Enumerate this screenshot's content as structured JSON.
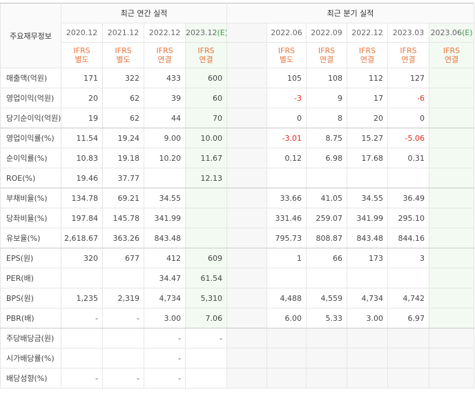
{
  "header": {
    "label": "주요재무정보",
    "annual_title": "최근 연간 실적",
    "quarterly_title": "최근 분기 실적"
  },
  "annual_periods": [
    {
      "period": "2020.12",
      "basis": "IFRS",
      "scope": "별도"
    },
    {
      "period": "2021.12",
      "basis": "IFRS",
      "scope": "별도"
    },
    {
      "period": "2022.12",
      "basis": "IFRS",
      "scope": "연결"
    },
    {
      "period": "2023.12",
      "estimate": "(E)",
      "basis": "IFRS",
      "scope": "연결"
    }
  ],
  "quarterly_periods": [
    {
      "period": "2022.06",
      "basis": "IFRS",
      "scope": "별도"
    },
    {
      "period": "2022.09",
      "basis": "IFRS",
      "scope": "연결"
    },
    {
      "period": "2022.12",
      "basis": "IFRS",
      "scope": "연결"
    },
    {
      "period": "2023.03",
      "basis": "IFRS",
      "scope": "연결"
    },
    {
      "period": "2023.06",
      "estimate": "(E)",
      "basis": "IFRS",
      "scope": "연결"
    }
  ],
  "rows": [
    {
      "label": "매출액(억원)",
      "annual": [
        "171",
        "322",
        "433",
        "600"
      ],
      "quarterly": [
        "105",
        "108",
        "112",
        "127",
        null
      ]
    },
    {
      "label": "영업이익(억원)",
      "annual": [
        "20",
        "62",
        "39",
        "60"
      ],
      "quarterly": [
        "-3",
        "9",
        "17",
        "-6",
        null
      ]
    },
    {
      "label": "당기순이익(억원)",
      "annual": [
        "19",
        "62",
        "44",
        "70"
      ],
      "quarterly": [
        "0",
        "8",
        "20",
        "0",
        null
      ]
    },
    {
      "label": "영업이익률(%)",
      "annual": [
        "11.54",
        "19.24",
        "9.00",
        "10.00"
      ],
      "quarterly": [
        "-3.01",
        "8.75",
        "15.27",
        "-5.06",
        null
      ]
    },
    {
      "label": "순이익률(%)",
      "annual": [
        "10.83",
        "19.18",
        "10.20",
        "11.67"
      ],
      "quarterly": [
        "0.12",
        "6.98",
        "17.68",
        "0.31",
        null
      ]
    },
    {
      "label": "ROE(%)",
      "annual": [
        "19.46",
        "37.77",
        null,
        "12.13"
      ],
      "quarterly": [
        null,
        null,
        null,
        null,
        null
      ]
    },
    {
      "label": "부채비율(%)",
      "annual": [
        "134.78",
        "69.21",
        "34.55",
        null
      ],
      "quarterly": [
        "33.66",
        "41.05",
        "34.55",
        "36.49",
        null
      ]
    },
    {
      "label": "당좌비율(%)",
      "annual": [
        "197.84",
        "145.78",
        "341.99",
        null
      ],
      "quarterly": [
        "331.46",
        "259.07",
        "341.99",
        "295.10",
        null
      ]
    },
    {
      "label": "유보율(%)",
      "annual": [
        "2,618.67",
        "363.26",
        "843.48",
        null
      ],
      "quarterly": [
        "795.73",
        "808.87",
        "843.48",
        "844.16",
        null
      ]
    },
    {
      "label": "EPS(원)",
      "annual": [
        "320",
        "677",
        "412",
        "609"
      ],
      "quarterly": [
        "1",
        "66",
        "173",
        "3",
        null
      ]
    },
    {
      "label": "PER(배)",
      "annual": [
        null,
        null,
        "34.47",
        "61.54"
      ],
      "quarterly": [
        null,
        null,
        null,
        null,
        null
      ]
    },
    {
      "label": "BPS(원)",
      "annual": [
        "1,235",
        "2,319",
        "4,734",
        "5,310"
      ],
      "quarterly": [
        "4,488",
        "4,559",
        "4,734",
        "4,742",
        null
      ]
    },
    {
      "label": "PBR(배)",
      "annual": [
        "-",
        "-",
        "3.00",
        "7.06"
      ],
      "quarterly": [
        "6.00",
        "5.33",
        "3.00",
        "6.97",
        null
      ]
    },
    {
      "label": "주당배당금(원)",
      "annual": [
        null,
        null,
        "-",
        "-"
      ],
      "quarterly": [
        null,
        null,
        null,
        null,
        null
      ]
    },
    {
      "label": "시가배당률(%)",
      "annual": [
        null,
        null,
        "-",
        null
      ],
      "quarterly": [
        null,
        null,
        null,
        null,
        null
      ]
    },
    {
      "label": "배당성향(%)",
      "annual": [
        "-",
        "-",
        "-",
        null
      ],
      "quarterly": [
        null,
        null,
        null,
        null,
        null
      ]
    }
  ]
}
